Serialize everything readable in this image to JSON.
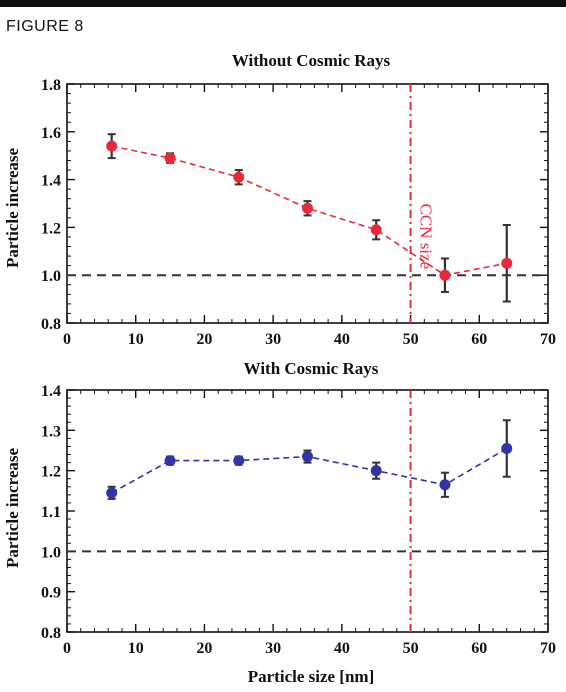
{
  "figure_label": "FIGURE 8",
  "colors": {
    "ref_line": "#333333",
    "ccn_line": "#e8293c",
    "error_bar": "#333333"
  },
  "chart_data": [
    {
      "type": "scatter",
      "title": "Without Cosmic Rays",
      "xlabel": "",
      "ylabel": "Particle increase",
      "xlim": [
        0,
        70
      ],
      "ylim": [
        0.8,
        1.8
      ],
      "xticks": [
        0,
        10,
        20,
        30,
        40,
        50,
        60,
        70
      ],
      "yticks": [
        0.8,
        1.0,
        1.2,
        1.4,
        1.6,
        1.8
      ],
      "ytick_labels": [
        "0.8",
        "1.0",
        "1.2",
        "1.4",
        "1.6",
        "1.8"
      ],
      "grid": false,
      "marker_color": "#e8293c",
      "series": [
        {
          "x": [
            6.5,
            15,
            25,
            35,
            45,
            55,
            64
          ],
          "y": [
            1.54,
            1.49,
            1.41,
            1.28,
            1.19,
            1.0,
            1.05
          ],
          "err": [
            0.05,
            0.02,
            0.03,
            0.03,
            0.04,
            0.07,
            0.16
          ]
        }
      ],
      "reference_line_y": 1.0,
      "vertical_line_x": 50,
      "annotations": [
        {
          "text": "CCN size",
          "x": 50,
          "y": 1.3
        }
      ]
    },
    {
      "type": "scatter",
      "title": "With Cosmic Rays",
      "xlabel": "Particle size [nm]",
      "ylabel": "Particle increase",
      "xlim": [
        0,
        70
      ],
      "ylim": [
        0.8,
        1.4
      ],
      "xticks": [
        0,
        10,
        20,
        30,
        40,
        50,
        60,
        70
      ],
      "yticks": [
        0.8,
        0.9,
        1.0,
        1.1,
        1.2,
        1.3,
        1.4
      ],
      "ytick_labels": [
        "0.8",
        "0.9",
        "1.0",
        "1.1",
        "1.2",
        "1.3",
        "1.4"
      ],
      "grid": false,
      "marker_color": "#3333a8",
      "series": [
        {
          "x": [
            6.5,
            15,
            25,
            35,
            45,
            55,
            64
          ],
          "y": [
            1.145,
            1.225,
            1.225,
            1.235,
            1.2,
            1.165,
            1.255
          ],
          "err": [
            0.015,
            0.01,
            0.01,
            0.015,
            0.02,
            0.03,
            0.07
          ]
        }
      ],
      "reference_line_y": 1.0,
      "vertical_line_x": 50
    }
  ]
}
